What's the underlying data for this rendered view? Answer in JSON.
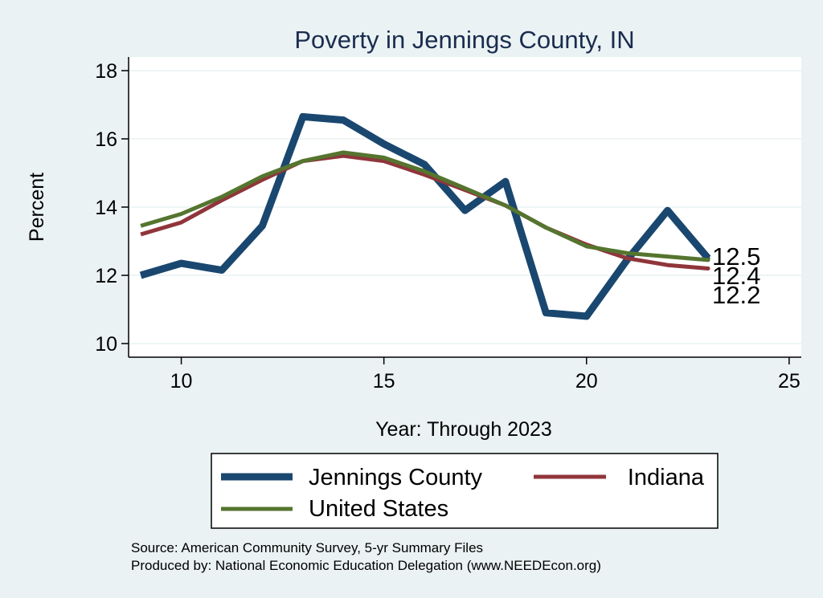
{
  "chart_data": {
    "type": "line",
    "title": "Poverty in Jennings County, IN",
    "xlabel": "Year: Through 2023",
    "ylabel": "Percent",
    "xlim": [
      8.7,
      25.3
    ],
    "ylim": [
      9.6,
      18.4
    ],
    "xticks": [
      10,
      15,
      20,
      25
    ],
    "yticks": [
      10,
      12,
      14,
      16,
      18
    ],
    "grid": true,
    "legend_position": "bottom",
    "series": [
      {
        "name": "Jennings County",
        "color": "#1a476f",
        "width": "thick",
        "x": [
          9,
          10,
          11,
          12,
          13,
          14,
          15,
          16,
          17,
          18,
          19,
          20,
          21,
          22,
          23
        ],
        "values": [
          12.0,
          12.35,
          12.15,
          13.45,
          16.65,
          16.55,
          15.85,
          15.25,
          13.9,
          14.75,
          10.9,
          10.8,
          12.45,
          13.9,
          12.5
        ]
      },
      {
        "name": "Indiana",
        "color": "#90353b",
        "width": "medium",
        "x": [
          9,
          10,
          11,
          12,
          13,
          14,
          15,
          16,
          17,
          18,
          19,
          20,
          21,
          22,
          23
        ],
        "values": [
          13.2,
          13.55,
          14.2,
          14.8,
          15.35,
          15.5,
          15.35,
          14.95,
          14.5,
          14.05,
          13.4,
          12.9,
          12.5,
          12.3,
          12.2
        ]
      },
      {
        "name": "United States",
        "color": "#55752f",
        "width": "medium",
        "x": [
          9,
          10,
          11,
          12,
          13,
          14,
          15,
          16,
          17,
          18,
          19,
          20,
          21,
          22,
          23
        ],
        "values": [
          13.45,
          13.8,
          14.3,
          14.9,
          15.35,
          15.6,
          15.45,
          15.05,
          14.55,
          14.05,
          13.4,
          12.85,
          12.65,
          12.55,
          12.45
        ]
      }
    ],
    "end_labels": [
      {
        "series": "Jennings County",
        "text": "12.5",
        "value": 12.5
      },
      {
        "series": "United States",
        "text": "12.4",
        "value": 12.45
      },
      {
        "series": "Indiana",
        "text": "12.2",
        "value": 12.2
      }
    ],
    "legend": {
      "entries": [
        "Jennings County",
        "Indiana",
        "United States"
      ]
    },
    "source_lines": [
      "Source: American Community Survey, 5-yr Summary Files",
      "Produced by: National Economic Education Delegation (www.NEEDEcon.org)"
    ]
  }
}
